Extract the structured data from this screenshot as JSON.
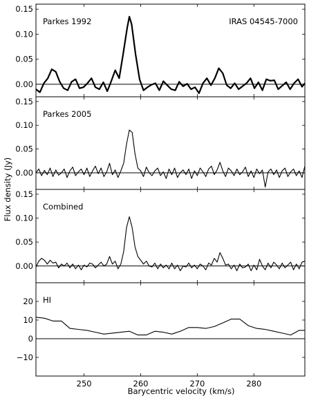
{
  "figure": {
    "ylabel": "Flux density (Jy)",
    "xlabel": "Barycentric velocity (km/s)",
    "xlim": [
      241.5,
      289.0
    ],
    "xticks": [
      250,
      260,
      270,
      280
    ]
  },
  "chart_data": [
    {
      "type": "line",
      "label": "Parkes 1992",
      "annotation": "IRAS 04545-7000",
      "ylim": [
        -0.025,
        0.16
      ],
      "yticks": [
        0.0,
        0.05,
        0.1,
        0.15
      ],
      "ytick_labels": [
        "0.00",
        "0.05",
        "0.10",
        "0.15"
      ],
      "zero_line": true,
      "stroke_width": 2.2,
      "series": [
        {
          "x": [
            241.5,
            242.2,
            242.9,
            243.6,
            244.3,
            245.0,
            245.7,
            246.4,
            247.1,
            247.8,
            248.5,
            249.2,
            249.9,
            250.6,
            251.3,
            252.0,
            252.7,
            253.4,
            254.1,
            254.8,
            255.5,
            256.2,
            256.9,
            257.6,
            258.0,
            258.4,
            259.1,
            259.8,
            260.5,
            261.2,
            261.9,
            262.6,
            263.3,
            264.0,
            264.7,
            265.4,
            266.1,
            266.8,
            267.5,
            268.2,
            268.9,
            269.6,
            270.3,
            271.0,
            271.7,
            272.4,
            273.1,
            273.8,
            274.5,
            275.2,
            275.9,
            276.6,
            277.3,
            278.0,
            278.7,
            279.4,
            280.1,
            280.8,
            281.5,
            282.2,
            282.9,
            283.6,
            284.3,
            285.0,
            285.7,
            286.4,
            287.1,
            287.8,
            288.5,
            289.0
          ],
          "y": [
            -0.01,
            -0.016,
            0.002,
            0.012,
            0.03,
            0.025,
            0.005,
            -0.008,
            -0.012,
            0.005,
            0.01,
            -0.008,
            -0.006,
            0.002,
            0.012,
            -0.006,
            -0.01,
            0.004,
            -0.014,
            0.006,
            0.028,
            0.012,
            0.06,
            0.112,
            0.135,
            0.12,
            0.06,
            0.01,
            -0.012,
            -0.006,
            -0.001,
            0.002,
            -0.012,
            0.006,
            -0.002,
            -0.01,
            -0.012,
            0.005,
            -0.004,
            0.001,
            -0.01,
            -0.006,
            -0.018,
            0.002,
            0.012,
            -0.002,
            0.012,
            0.032,
            0.022,
            -0.002,
            -0.008,
            0.002,
            -0.01,
            -0.004,
            0.002,
            0.012,
            -0.008,
            0.004,
            -0.012,
            0.01,
            0.007,
            0.008,
            -0.01,
            -0.003,
            0.004,
            -0.01,
            0.002,
            0.01,
            -0.005,
            0.002
          ]
        }
      ]
    },
    {
      "type": "line",
      "label": "Parkes 2005",
      "ylim": [
        -0.035,
        0.16
      ],
      "yticks": [
        0.0,
        0.05,
        0.1,
        0.15
      ],
      "ytick_labels": [
        "0.00",
        "0.05",
        "0.10",
        "0.15"
      ],
      "zero_line": true,
      "stroke_width": 1.1,
      "series": [
        {
          "x": [
            241.5,
            242.0,
            242.5,
            243.0,
            243.5,
            244.0,
            244.5,
            245.0,
            245.5,
            246.0,
            246.5,
            247.0,
            247.5,
            248.0,
            248.5,
            249.0,
            249.5,
            250.0,
            250.5,
            251.0,
            251.5,
            252.0,
            252.5,
            253.0,
            253.5,
            254.0,
            254.5,
            255.0,
            255.5,
            256.0,
            256.5,
            257.0,
            257.5,
            258.0,
            258.5,
            259.0,
            259.5,
            260.0,
            260.5,
            261.0,
            261.5,
            262.0,
            262.5,
            263.0,
            263.5,
            264.0,
            264.5,
            265.0,
            265.5,
            266.0,
            266.5,
            267.0,
            267.5,
            268.0,
            268.5,
            269.0,
            269.5,
            270.0,
            270.5,
            271.0,
            271.5,
            272.0,
            272.5,
            273.0,
            273.5,
            274.0,
            274.5,
            275.0,
            275.5,
            276.0,
            276.5,
            277.0,
            277.5,
            278.0,
            278.5,
            279.0,
            279.5,
            280.0,
            280.5,
            281.0,
            281.5,
            282.0,
            282.5,
            283.0,
            283.5,
            284.0,
            284.5,
            285.0,
            285.5,
            286.0,
            286.5,
            287.0,
            287.5,
            288.0,
            288.5,
            289.0
          ],
          "y": [
            0.0,
            0.008,
            -0.006,
            0.005,
            -0.004,
            0.01,
            -0.008,
            0.006,
            -0.005,
            0.0,
            0.008,
            -0.01,
            0.004,
            0.012,
            -0.006,
            0.002,
            0.008,
            -0.004,
            0.01,
            -0.008,
            0.004,
            0.014,
            -0.002,
            0.01,
            -0.008,
            0.002,
            0.02,
            -0.004,
            0.006,
            -0.01,
            0.004,
            0.02,
            0.06,
            0.09,
            0.085,
            0.04,
            0.01,
            0.004,
            -0.008,
            0.012,
            0.0,
            -0.006,
            0.004,
            0.01,
            -0.006,
            0.002,
            -0.012,
            0.008,
            -0.004,
            0.01,
            -0.01,
            0.0,
            0.006,
            -0.004,
            0.008,
            -0.012,
            0.004,
            -0.006,
            0.01,
            0.002,
            -0.008,
            0.008,
            0.014,
            -0.004,
            0.006,
            0.022,
            0.004,
            -0.008,
            0.01,
            0.004,
            -0.006,
            0.008,
            -0.004,
            0.002,
            0.012,
            -0.008,
            0.004,
            -0.01,
            0.008,
            -0.002,
            0.006,
            -0.03,
            0.002,
            0.008,
            -0.004,
            0.006,
            -0.01,
            0.004,
            0.01,
            -0.008,
            0.002,
            0.008,
            -0.006,
            0.004,
            -0.01,
            0.014
          ]
        }
      ]
    },
    {
      "type": "line",
      "label": "Combined",
      "ylim": [
        -0.035,
        0.16
      ],
      "yticks": [
        0.0,
        0.05,
        0.1,
        0.15
      ],
      "ytick_labels": [
        "0.00",
        "0.05",
        "0.10",
        "0.15"
      ],
      "zero_line": true,
      "stroke_width": 1.1,
      "series": [
        {
          "x": [
            241.5,
            242.0,
            242.5,
            243.0,
            243.5,
            244.0,
            244.5,
            245.0,
            245.5,
            246.0,
            246.5,
            247.0,
            247.5,
            248.0,
            248.5,
            249.0,
            249.5,
            250.0,
            250.5,
            251.0,
            251.5,
            252.0,
            252.5,
            253.0,
            253.5,
            254.0,
            254.5,
            255.0,
            255.5,
            256.0,
            256.5,
            257.0,
            257.5,
            258.0,
            258.5,
            259.0,
            259.5,
            260.0,
            260.5,
            261.0,
            261.5,
            262.0,
            262.5,
            263.0,
            263.5,
            264.0,
            264.5,
            265.0,
            265.5,
            266.0,
            266.5,
            267.0,
            267.5,
            268.0,
            268.5,
            269.0,
            269.5,
            270.0,
            270.5,
            271.0,
            271.5,
            272.0,
            272.5,
            273.0,
            273.5,
            274.0,
            274.5,
            275.0,
            275.5,
            276.0,
            276.5,
            277.0,
            277.5,
            278.0,
            278.5,
            279.0,
            279.5,
            280.0,
            280.5,
            281.0,
            281.5,
            282.0,
            282.5,
            283.0,
            283.5,
            284.0,
            284.5,
            285.0,
            285.5,
            286.0,
            286.5,
            287.0,
            287.5,
            288.0,
            288.5,
            289.0
          ],
          "y": [
            -0.002,
            0.01,
            0.016,
            0.012,
            0.004,
            0.012,
            0.006,
            0.008,
            -0.004,
            0.004,
            0.0,
            0.006,
            -0.004,
            0.004,
            -0.006,
            0.002,
            -0.008,
            0.002,
            -0.002,
            0.006,
            0.004,
            -0.004,
            0.002,
            0.008,
            0.0,
            0.004,
            0.02,
            0.004,
            0.01,
            -0.006,
            0.004,
            0.03,
            0.08,
            0.103,
            0.08,
            0.04,
            0.02,
            0.012,
            0.004,
            0.01,
            0.0,
            -0.002,
            0.006,
            -0.006,
            0.004,
            -0.004,
            0.002,
            -0.006,
            0.006,
            -0.006,
            0.002,
            -0.01,
            0.0,
            -0.002,
            0.006,
            -0.004,
            0.002,
            -0.006,
            0.004,
            0.0,
            -0.008,
            0.006,
            0.002,
            0.016,
            0.008,
            0.028,
            0.016,
            0.002,
            0.004,
            -0.006,
            0.002,
            -0.01,
            0.004,
            -0.004,
            -0.002,
            0.004,
            -0.01,
            0.002,
            -0.008,
            0.014,
            0.0,
            -0.008,
            0.006,
            -0.004,
            0.008,
            0.002,
            -0.006,
            0.006,
            -0.004,
            0.002,
            0.008,
            -0.008,
            0.004,
            -0.006,
            0.008,
            0.01
          ]
        }
      ]
    },
    {
      "type": "line",
      "label": "HI",
      "ylim": [
        -20,
        30
      ],
      "yticks": [
        -10,
        0,
        10,
        20
      ],
      "ytick_labels": [
        "−10",
        "0",
        "10",
        "20"
      ],
      "zero_line": true,
      "stroke_width": 1.1,
      "series": [
        {
          "x": [
            241.5,
            243.0,
            244.5,
            246.0,
            247.5,
            249.0,
            250.5,
            252.0,
            253.5,
            255.0,
            256.5,
            258.0,
            259.5,
            261.0,
            262.5,
            264.0,
            265.5,
            267.0,
            268.5,
            270.0,
            271.5,
            273.0,
            274.5,
            276.0,
            277.5,
            279.0,
            280.5,
            282.0,
            283.5,
            285.0,
            286.5,
            288.0,
            289.0
          ],
          "y": [
            11.5,
            11.0,
            9.5,
            9.5,
            5.5,
            5.0,
            4.5,
            3.5,
            2.5,
            3.0,
            3.5,
            4.0,
            2.0,
            2.0,
            4.0,
            3.5,
            2.5,
            4.0,
            6.0,
            6.0,
            5.5,
            6.5,
            8.5,
            10.5,
            10.5,
            7.0,
            5.5,
            5.0,
            4.0,
            3.0,
            2.0,
            4.5,
            4.5
          ]
        }
      ]
    }
  ]
}
